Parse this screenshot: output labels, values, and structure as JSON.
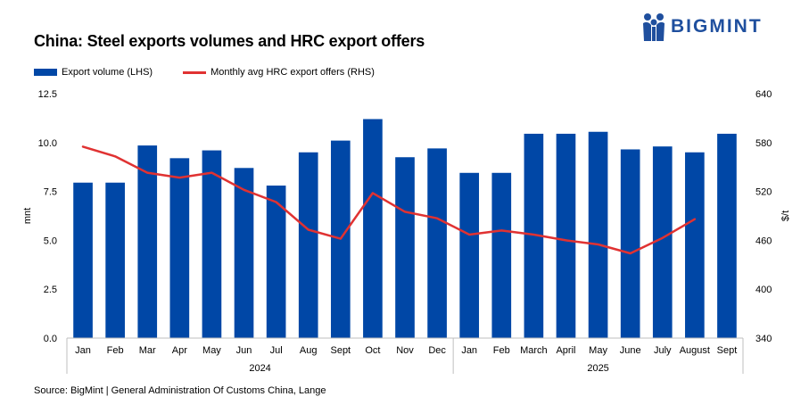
{
  "title": "China: Steel exports volumes and HRC export offers",
  "brand": {
    "name": "BIGMINT",
    "color": "#1f4f9e"
  },
  "source": "Source: BigMint | General Administration Of Customs China, Lange",
  "chart_data": {
    "type": "bar",
    "categories": [
      "Jan",
      "Feb",
      "Mar",
      "Apr",
      "May",
      "Jun",
      "Jul",
      "Aug",
      "Sept",
      "Oct",
      "Nov",
      "Dec",
      "Jan",
      "Feb",
      "March",
      "April",
      "May",
      "June",
      "July",
      "August",
      "Sept"
    ],
    "groups": [
      {
        "label": "2024",
        "count": 12
      },
      {
        "label": "2025",
        "count": 9
      }
    ],
    "series": [
      {
        "name": "Export volume (LHS)",
        "type": "bar",
        "axis": "left",
        "color": "#0047a6",
        "values": [
          7.95,
          7.95,
          9.85,
          9.2,
          9.6,
          8.7,
          7.8,
          9.5,
          10.1,
          11.2,
          9.25,
          9.7,
          8.45,
          8.45,
          10.45,
          10.45,
          10.55,
          9.65,
          9.8,
          9.5,
          10.45
        ]
      },
      {
        "name": "Monthly avg HRC export offers (RHS)",
        "type": "line",
        "axis": "right",
        "color": "#e03232",
        "values": [
          575,
          563,
          543,
          537,
          543,
          522,
          507,
          473,
          462,
          518,
          495,
          487,
          467,
          472,
          467,
          460,
          455,
          444,
          463,
          486,
          null
        ]
      }
    ],
    "ylabel": "mnt",
    "y2label": "$/t",
    "ylim": [
      0,
      12.5
    ],
    "y2lim": [
      340,
      640
    ],
    "yticks": [
      "0.0",
      "2.5",
      "5.0",
      "7.5",
      "10.0",
      "12.5"
    ],
    "y2ticks": [
      "340",
      "400",
      "460",
      "520",
      "580",
      "640"
    ],
    "grid": false,
    "legend_position": "top-left"
  }
}
